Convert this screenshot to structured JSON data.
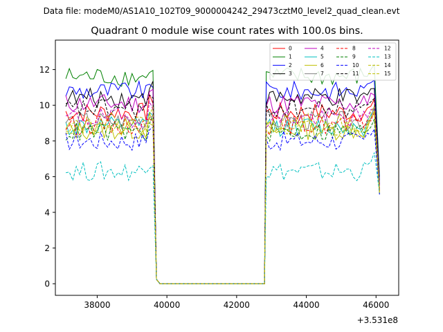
{
  "chart_data": {
    "type": "line",
    "suptitle": "Data file: modeM0/AS1A10_102T09_9000004242_29473cztM0_level2_quad_clean.evt",
    "title": "Quadrant 0 module wise count rates with 100.0s bins.",
    "xlabel": "",
    "ylabel": "",
    "x_offset_label": "+3.531e8",
    "xlim": [
      36800,
      46650
    ],
    "ylim": [
      -0.65,
      13.65
    ],
    "xticks": [
      38000,
      40000,
      42000,
      44000,
      46000
    ],
    "xtick_labels": [
      "38000",
      "40000",
      "42000",
      "44000",
      "46000"
    ],
    "yticks": [
      0,
      2,
      4,
      6,
      8,
      10,
      12
    ],
    "ytick_labels": [
      "0",
      "2",
      "4",
      "6",
      "8",
      "10",
      "12"
    ],
    "legend": {
      "placement": "top-right",
      "columns": 4
    },
    "segment_breaks": {
      "on_start": 37100,
      "on_end": 39600,
      "off_start": 39700,
      "off_end": 42800,
      "on2_start": 42850,
      "on2_end": 46000,
      "end": 46100,
      "step": 100
    },
    "series": [
      {
        "name": "0",
        "color": "#ff0000",
        "dash": "solid",
        "level": 9.6,
        "end_value": 5.2
      },
      {
        "name": "1",
        "color": "#008000",
        "dash": "solid",
        "level": 11.6,
        "end_value": 6.0
      },
      {
        "name": "2",
        "color": "#0000ff",
        "dash": "solid",
        "level": 10.8,
        "end_value": 5.8
      },
      {
        "name": "3",
        "color": "#000000",
        "dash": "solid",
        "level": 10.4,
        "end_value": 5.6
      },
      {
        "name": "4",
        "color": "#bf00bf",
        "dash": "solid",
        "level": 10.1,
        "end_value": 5.5
      },
      {
        "name": "5",
        "color": "#00bfbf",
        "dash": "solid",
        "level": 8.8,
        "end_value": 5.3
      },
      {
        "name": "6",
        "color": "#bfbf00",
        "dash": "solid",
        "level": 8.6,
        "end_value": 5.2
      },
      {
        "name": "7",
        "color": "#808080",
        "dash": "solid",
        "level": 9.1,
        "end_value": 5.3
      },
      {
        "name": "8",
        "color": "#ff0000",
        "dash": "dashed",
        "level": 8.9,
        "end_value": 5.1
      },
      {
        "name": "9",
        "color": "#008000",
        "dash": "dashed",
        "level": 8.5,
        "end_value": 5.0
      },
      {
        "name": "10",
        "color": "#0000ff",
        "dash": "dashed",
        "level": 8.0,
        "end_value": 5.0
      },
      {
        "name": "11",
        "color": "#000000",
        "dash": "dashed",
        "level": 9.8,
        "end_value": 5.4
      },
      {
        "name": "12",
        "color": "#bf00bf",
        "dash": "dashed",
        "level": 9.3,
        "end_value": 5.3
      },
      {
        "name": "13",
        "color": "#00bfbf",
        "dash": "dashed",
        "level": 6.3,
        "end_value": 5.1
      },
      {
        "name": "14",
        "color": "#bfbf00",
        "dash": "dashed",
        "level": 8.7,
        "end_value": 5.1
      },
      {
        "name": "15",
        "color": "#bfbf00",
        "dash": "dashed",
        "level": 9.0,
        "end_value": 5.2
      }
    ]
  }
}
